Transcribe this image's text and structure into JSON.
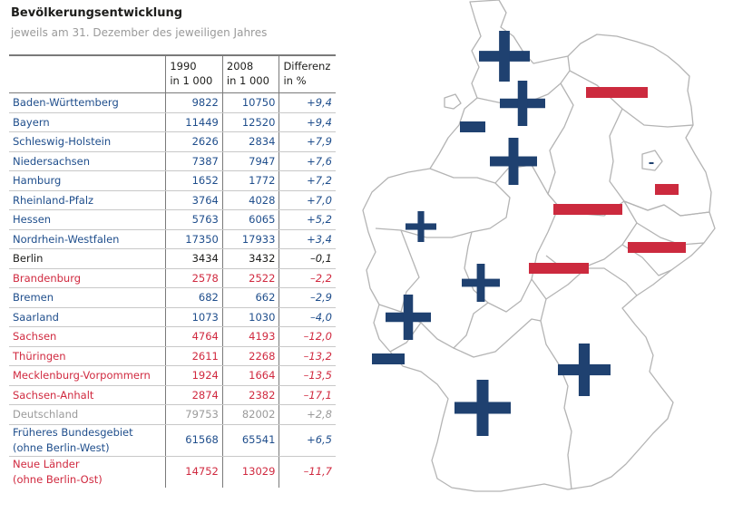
{
  "chart_data": {
    "type": "table",
    "title": "Bevölkerungsentwicklung",
    "subtitle": "jeweils am 31. Dezember des jeweiligen Jahres",
    "columns": [
      {
        "line1": "1990",
        "line2": "in 1 000"
      },
      {
        "line1": "2008",
        "line2": "in 1 000"
      },
      {
        "line1": "Differenz",
        "line2": "in %"
      }
    ],
    "rows": [
      {
        "name": "Baden-Württemberg",
        "v1990": "9822",
        "v2008": "10750",
        "diff": "+9,4",
        "group": "west"
      },
      {
        "name": "Bayern",
        "v1990": "11449",
        "v2008": "12520",
        "diff": "+9,4",
        "group": "west"
      },
      {
        "name": "Schleswig-Holstein",
        "v1990": "2626",
        "v2008": "2834",
        "diff": "+7,9",
        "group": "west"
      },
      {
        "name": "Niedersachsen",
        "v1990": "7387",
        "v2008": "7947",
        "diff": "+7,6",
        "group": "west"
      },
      {
        "name": "Hamburg",
        "v1990": "1652",
        "v2008": "1772",
        "diff": "+7,2",
        "group": "west"
      },
      {
        "name": "Rheinland-Pfalz",
        "v1990": "3764",
        "v2008": "4028",
        "diff": "+7,0",
        "group": "west"
      },
      {
        "name": "Hessen",
        "v1990": "5763",
        "v2008": "6065",
        "diff": "+5,2",
        "group": "west"
      },
      {
        "name": "Nordrhein-Westfalen",
        "v1990": "17350",
        "v2008": "17933",
        "diff": "+3,4",
        "group": "west"
      },
      {
        "name": "Berlin",
        "v1990": "3434",
        "v2008": "3432",
        "diff": "–0,1",
        "group": "berlin"
      },
      {
        "name": "Brandenburg",
        "v1990": "2578",
        "v2008": "2522",
        "diff": "–2,2",
        "group": "east"
      },
      {
        "name": "Bremen",
        "v1990": "682",
        "v2008": "662",
        "diff": "–2,9",
        "group": "west"
      },
      {
        "name": "Saarland",
        "v1990": "1073",
        "v2008": "1030",
        "diff": "–4,0",
        "group": "west"
      },
      {
        "name": "Sachsen",
        "v1990": "4764",
        "v2008": "4193",
        "diff": "–12,0",
        "group": "east"
      },
      {
        "name": "Thüringen",
        "v1990": "2611",
        "v2008": "2268",
        "diff": "–13,2",
        "group": "east"
      },
      {
        "name": "Mecklenburg-Vorpommern",
        "v1990": "1924",
        "v2008": "1664",
        "diff": "–13,5",
        "group": "east"
      },
      {
        "name": "Sachsen-Anhalt",
        "v1990": "2874",
        "v2008": "2382",
        "diff": "–17,1",
        "group": "east"
      },
      {
        "name": "Deutschland",
        "v1990": "79753",
        "v2008": "82002",
        "diff": "+2,8",
        "group": "total"
      },
      {
        "name": "Früheres Bundesgebiet",
        "name2": "(ohne Berlin-West)",
        "v1990": "61568",
        "v2008": "65541",
        "diff": "+6,5",
        "group": "west"
      },
      {
        "name": "Neue Länder",
        "name2": "(ohne Berlin-Ost)",
        "v1990": "14752",
        "v2008": "13029",
        "diff": "–11,7",
        "group": "east"
      }
    ],
    "colors": {
      "west": "#1f4e8c",
      "east": "#d0293f",
      "berlin": "#1d1d1b",
      "total": "#9a9a9a",
      "map_outline": "#b4b4b4",
      "symbol_plus": "#1f4170",
      "symbol_minus": "#cc2a3e"
    }
  }
}
